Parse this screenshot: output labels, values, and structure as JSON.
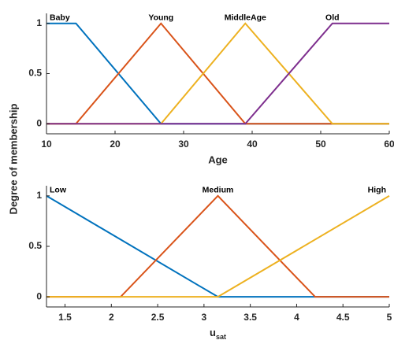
{
  "chart_data": [
    {
      "type": "line",
      "ylabel": "Degree of membership",
      "xlabel": "Age",
      "xlim": [
        10,
        60
      ],
      "xticks": [
        10,
        20,
        30,
        40,
        50,
        60
      ],
      "ylim": [
        -0.1,
        1.1
      ],
      "yticks": [
        0,
        {
          "value": 0.5,
          "label": "0.5"
        },
        1
      ],
      "series": [
        {
          "name": "Baby",
          "color": "#0072bd",
          "x": [
            10,
            14.3,
            26.7,
            60
          ],
          "values": [
            1,
            1,
            0,
            0
          ]
        },
        {
          "name": "Young",
          "color": "#d95319",
          "x": [
            10,
            14.3,
            26.7,
            39,
            60
          ],
          "values": [
            0,
            0,
            1,
            0,
            0
          ]
        },
        {
          "name": "MiddleAge",
          "color": "#edb120",
          "x": [
            10,
            26.7,
            39,
            51.7,
            60
          ],
          "values": [
            0,
            0,
            1,
            0,
            0
          ]
        },
        {
          "name": "Old",
          "color": "#7e2f8e",
          "x": [
            10,
            39,
            51.7,
            60
          ],
          "values": [
            0,
            0,
            1,
            1
          ]
        }
      ]
    },
    {
      "type": "line",
      "xlabel": {
        "text": "u",
        "subscript": "sat"
      },
      "xlim": [
        1.3,
        5
      ],
      "xticks": [
        1.5,
        2,
        2.5,
        3,
        3.5,
        4,
        4.5,
        5
      ],
      "ylim": [
        -0.1,
        1.1
      ],
      "yticks": [
        0,
        {
          "value": 0.5,
          "label": "0.5"
        },
        1
      ],
      "series": [
        {
          "name": "Low",
          "color": "#0072bd",
          "x": [
            1.3,
            3.15,
            5
          ],
          "values": [
            1,
            0,
            0
          ]
        },
        {
          "name": "Medium",
          "color": "#d95319",
          "x": [
            1.3,
            2.1,
            3.15,
            4.2,
            5
          ],
          "values": [
            0,
            0,
            1,
            0,
            0
          ]
        },
        {
          "name": "High",
          "color": "#edb120",
          "x": [
            1.3,
            3.15,
            5
          ],
          "values": [
            0,
            0,
            1
          ]
        }
      ]
    }
  ]
}
